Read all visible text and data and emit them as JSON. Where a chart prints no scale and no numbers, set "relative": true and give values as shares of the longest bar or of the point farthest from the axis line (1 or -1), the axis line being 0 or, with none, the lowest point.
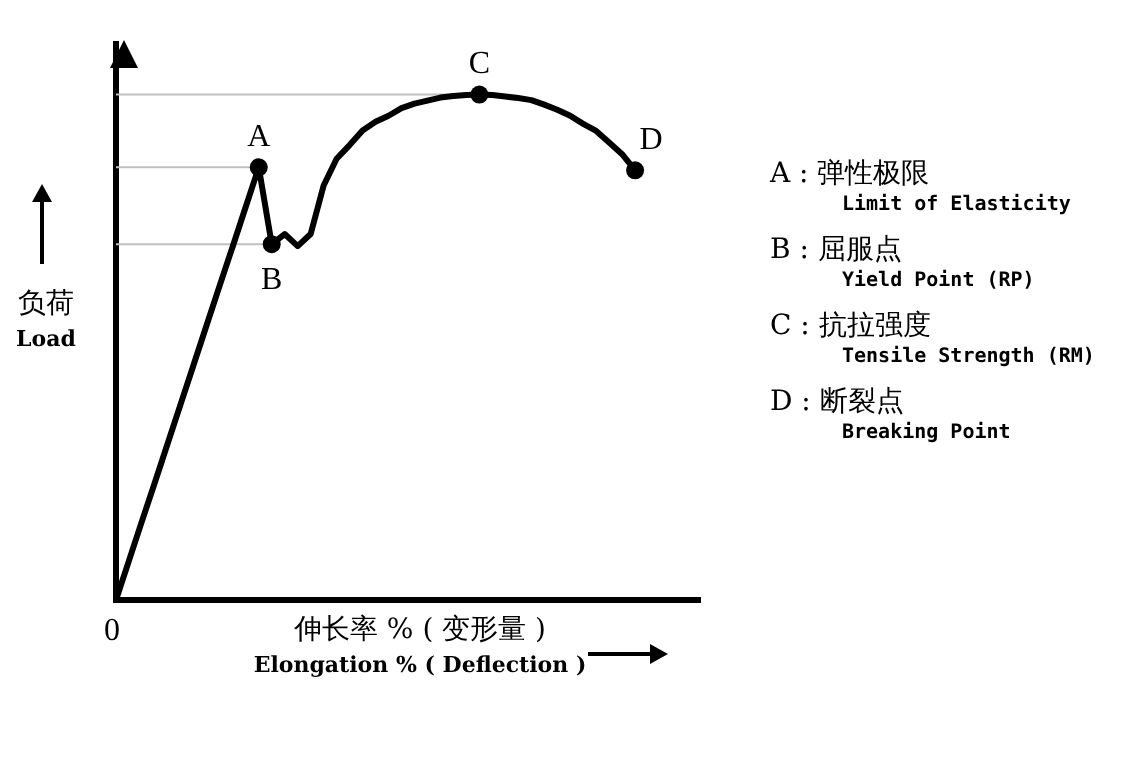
{
  "chart_data": {
    "type": "line",
    "relative": true,
    "xlabel": "伸长率 % ( 变形量 )\nElongation % ( Deflection )",
    "ylabel": "负荷\nLoad",
    "grid": false,
    "legend": false,
    "marker": "none",
    "line_style": "solid",
    "categories": [
      null,
      null,
      null,
      null,
      null,
      null,
      null,
      null,
      null,
      null,
      null,
      null,
      null,
      null,
      null,
      null,
      null,
      null,
      null,
      null,
      null,
      null,
      null,
      null,
      null,
      null,
      null,
      null,
      null,
      null,
      null,
      null,
      null,
      null,
      null,
      null,
      null,
      null,
      null,
      null,
      null,
      null,
      null,
      null,
      null,
      null
    ],
    "series": [
      {
        "color": "#000000",
        "values": [
          0,
          0.078,
          0.156,
          0.233,
          0.311,
          0.389,
          0.467,
          0.545,
          0.623,
          0.7,
          0.778,
          0.856,
          0.704,
          0.724,
          0.7,
          0.724,
          0.82,
          0.873,
          0.9,
          0.929,
          0.946,
          0.958,
          0.973,
          0.982,
          0.988,
          0.994,
          0.997,
          0.999,
          1,
          0.999,
          0.996,
          0.993,
          0.989,
          0.98,
          0.97,
          0.958,
          0.942,
          0.928,
          0.905,
          0.882,
          0.85,
          null,
          null,
          null,
          null,
          null
        ]
      }
    ],
    "ref_lines": [
      {
        "axis": "y",
        "value": 1,
        "color": "#c0c0c0"
      },
      {
        "axis": "y",
        "value": 0.856,
        "color": "#c0c0c0"
      },
      {
        "axis": "y",
        "value": 0.704,
        "color": "#c0c0c0"
      }
    ],
    "annotations": [
      {
        "text": "A",
        "y": 0.856
      },
      {
        "text": "B",
        "y": 0.704
      },
      {
        "text": "C",
        "y": 1
      },
      {
        "text": "D",
        "y": 0.85
      },
      {
        "text": "0",
        "y": 0
      },
      "A : 弹性极限\nLimit of Elasticity",
      "B : 屈服点\nYield Point (RP)",
      "C : 抗拉强度\nTensile Strength (RM)",
      "D : 断裂点\nBreaking Point"
    ]
  }
}
